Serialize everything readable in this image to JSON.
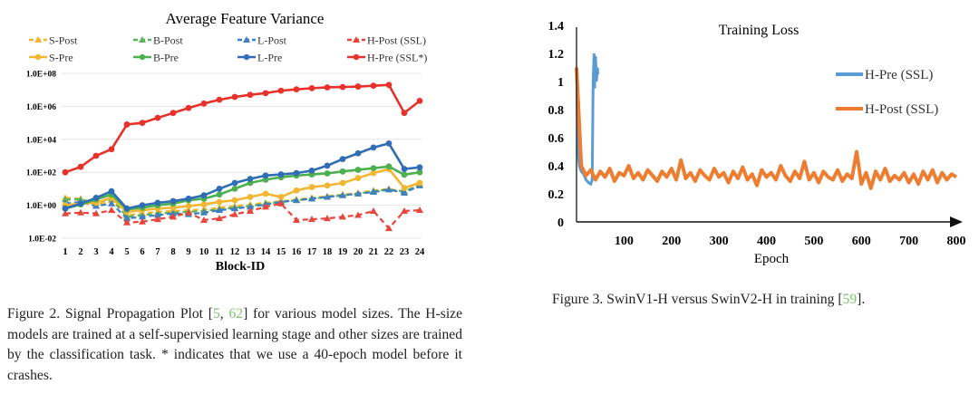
{
  "chart_data": [
    {
      "type": "line",
      "title": "Average Feature Variance",
      "xlabel": "Block-ID",
      "ylabel": "",
      "yscale": "log",
      "ylim": [
        0.01,
        100000000.0
      ],
      "y_ticks": [
        "1.0E-02",
        "1.0E+00",
        "1.0E+02",
        "1.0E+04",
        "1.0E+06",
        "1.0E+08"
      ],
      "y_tick_exponents": [
        -2,
        0,
        2,
        4,
        6,
        8
      ],
      "x": [
        1,
        2,
        3,
        4,
        5,
        6,
        7,
        8,
        9,
        10,
        11,
        12,
        13,
        14,
        15,
        16,
        17,
        18,
        19,
        20,
        21,
        22,
        23,
        24
      ],
      "grid": true,
      "legend_placement": "top",
      "series": [
        {
          "name": "S-Post",
          "color": "#f2b632",
          "style": "dashed",
          "marker": "triangle",
          "log10_values": [
            0.45,
            0.4,
            0,
            0.3,
            -0.6,
            -0.5,
            -0.4,
            -0.35,
            -0.3,
            -0.25,
            -0.15,
            -0.05,
            0.05,
            0.15,
            0.25,
            0.35,
            0.45,
            0.55,
            0.65,
            0.75,
            0.9,
            1.0,
            0.8,
            1.3
          ]
        },
        {
          "name": "B-Post",
          "color": "#5bb35b",
          "style": "dashed",
          "marker": "triangle",
          "log10_values": [
            0.35,
            0.35,
            0.15,
            0.4,
            -0.7,
            -0.6,
            -0.5,
            -0.45,
            -0.4,
            -0.35,
            -0.25,
            -0.15,
            -0.05,
            0.1,
            0.2,
            0.3,
            0.4,
            0.5,
            0.6,
            0.7,
            0.85,
            0.95,
            0.85,
            1.2
          ]
        },
        {
          "name": "L-Post",
          "color": "#3f7fc4",
          "style": "dashed",
          "marker": "triangle",
          "log10_values": [
            0.1,
            0.2,
            -0.05,
            0.1,
            -0.8,
            -0.7,
            -0.6,
            -0.5,
            -0.55,
            -0.45,
            -0.3,
            -0.2,
            -0.1,
            0.05,
            0.2,
            0.3,
            0.4,
            0.5,
            0.6,
            0.7,
            0.8,
            0.95,
            0.75,
            1.2
          ]
        },
        {
          "name": "H-Post (SSL)",
          "color": "#e8463c",
          "style": "dashed",
          "marker": "triangle",
          "log10_values": [
            -0.5,
            -0.45,
            -0.5,
            -0.3,
            -1.05,
            -1.0,
            -0.85,
            -0.7,
            -0.45,
            -0.9,
            -0.8,
            -0.55,
            -0.35,
            -0.1,
            0.1,
            -0.9,
            -0.85,
            -0.8,
            -0.7,
            -0.6,
            -0.35,
            -1.4,
            -0.35,
            -0.3
          ]
        },
        {
          "name": "S-Pre",
          "color": "#f2b632",
          "style": "solid",
          "marker": "circle",
          "log10_values": [
            0,
            0.1,
            0.15,
            0.45,
            -0.4,
            -0.3,
            -0.2,
            -0.15,
            -0.05,
            0.05,
            0.2,
            0.3,
            0.5,
            0.7,
            0.5,
            0.9,
            1.1,
            1.2,
            1.35,
            1.65,
            1.95,
            2.2,
            1.05,
            1.35
          ]
        },
        {
          "name": "B-Pre",
          "color": "#4caf50",
          "style": "solid",
          "marker": "circle",
          "log10_values": [
            -0.2,
            0.05,
            0.35,
            0.65,
            -0.25,
            -0.15,
            0,
            0.1,
            0.3,
            0.4,
            0.65,
            1.0,
            1.35,
            1.55,
            1.7,
            1.8,
            1.87,
            1.93,
            2.05,
            2.15,
            2.25,
            2.35,
            1.85,
            2.0
          ]
        },
        {
          "name": "L-Pre",
          "color": "#2f6db5",
          "style": "solid",
          "marker": "circle",
          "log10_values": [
            -0.2,
            0.1,
            0.45,
            0.85,
            -0.2,
            0,
            0.15,
            0.25,
            0.4,
            0.6,
            1.0,
            1.35,
            1.6,
            1.8,
            1.87,
            1.95,
            2.1,
            2.4,
            2.8,
            3.15,
            3.5,
            3.75,
            2.2,
            2.3
          ]
        },
        {
          "name": "H-Pre (SSL*)",
          "color": "#e8312a",
          "style": "solid",
          "marker": "circle",
          "log10_values": [
            2,
            2.33,
            3,
            3.4,
            4.9,
            5.0,
            5.3,
            5.6,
            5.9,
            6.17,
            6.4,
            6.57,
            6.7,
            6.8,
            6.95,
            7.03,
            7.1,
            7.15,
            7.17,
            7.2,
            7.25,
            7.3,
            5.6,
            6.33
          ]
        }
      ]
    },
    {
      "type": "line",
      "title": "Training Loss",
      "xlabel": "Epoch",
      "ylabel": "",
      "xlim": [
        0,
        800
      ],
      "ylim": [
        0,
        1.4
      ],
      "x_ticks": [
        "100",
        "200",
        "300",
        "400",
        "500",
        "600",
        "700",
        "800"
      ],
      "x_tick_values": [
        100,
        200,
        300,
        400,
        500,
        600,
        700,
        800
      ],
      "y_ticks": [
        "0",
        "0.2",
        "0.4",
        "0.6",
        "0.8",
        "1",
        "1.2",
        "1.4"
      ],
      "y_tick_values": [
        0,
        0.2,
        0.4,
        0.6,
        0.8,
        1,
        1.2,
        1.4
      ],
      "grid": false,
      "legend_placement": "right",
      "series": [
        {
          "name": "H-Pre (SSL)",
          "color": "#5b9bd5",
          "x": [
            0,
            3,
            6,
            10,
            15,
            20,
            25,
            30,
            33,
            35,
            37,
            38,
            40,
            42,
            44,
            45
          ],
          "y": [
            1.1,
            0.5,
            0.4,
            0.36,
            0.34,
            0.3,
            0.28,
            0.27,
            0.3,
            1.0,
            1.2,
            0.95,
            1.18,
            1.0,
            1.1,
            1.05
          ]
        },
        {
          "name": "H-Post (SSL)",
          "color": "#ed7d31",
          "x_start": 0,
          "x_step": 10,
          "y": [
            1.1,
            0.4,
            0.33,
            0.37,
            0.3,
            0.36,
            0.32,
            0.38,
            0.29,
            0.35,
            0.33,
            0.4,
            0.31,
            0.35,
            0.3,
            0.37,
            0.33,
            0.29,
            0.36,
            0.32,
            0.38,
            0.3,
            0.44,
            0.31,
            0.35,
            0.29,
            0.37,
            0.33,
            0.3,
            0.38,
            0.32,
            0.35,
            0.28,
            0.36,
            0.31,
            0.39,
            0.3,
            0.34,
            0.26,
            0.37,
            0.32,
            0.35,
            0.3,
            0.4,
            0.33,
            0.29,
            0.36,
            0.31,
            0.43,
            0.3,
            0.35,
            0.28,
            0.36,
            0.32,
            0.3,
            0.37,
            0.29,
            0.34,
            0.31,
            0.5,
            0.27,
            0.35,
            0.24,
            0.36,
            0.3,
            0.38,
            0.29,
            0.33,
            0.3,
            0.35,
            0.28,
            0.34,
            0.27,
            0.36,
            0.3,
            0.37,
            0.28,
            0.35,
            0.3,
            0.34,
            0.32
          ]
        }
      ]
    }
  ],
  "captions": {
    "fig2_prefix": "Figure 2. Signal Propagation Plot [",
    "fig2_ref1": "5",
    "fig2_sep": ", ",
    "fig2_ref2": "62",
    "fig2_rest": "] for various model sizes. The H-size models are trained at a self-supervisied learning stage and other sizes are trained by the classification task.  * indicates that we use a 40-epoch model before it crashes.",
    "fig3_prefix": "Figure 3. SwinV1-H versus SwinV2-H in training [",
    "fig3_ref": "59",
    "fig3_suffix": "]."
  }
}
